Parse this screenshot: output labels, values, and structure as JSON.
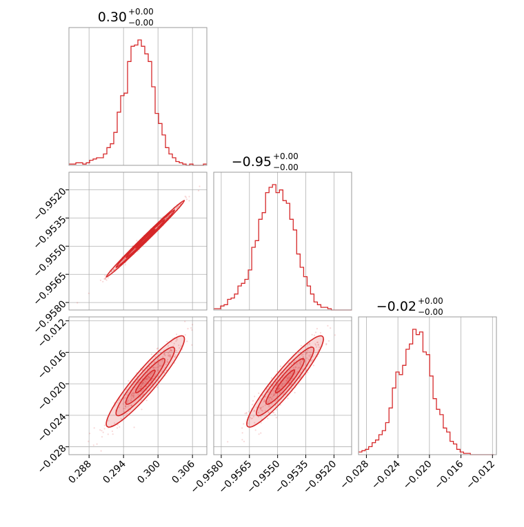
{
  "chart_data": {
    "type": "corner",
    "color": "#d62728",
    "panel_border_color": "#999999",
    "grid_color": "#b0b0b0",
    "grid": true,
    "parameters": [
      {
        "title_main": "0.30",
        "title_upper": "+0.00",
        "title_lower": "−0.00",
        "range": [
          0.2845,
          0.3085
        ],
        "ticks": [
          0.288,
          0.294,
          0.3,
          0.306
        ],
        "tick_labels": [
          "0.288",
          "0.294",
          "0.300",
          "0.306"
        ],
        "histogram": {
          "x_start": 0.2845,
          "bin_width": 0.0006,
          "counts": [
            1,
            1,
            2,
            2,
            1,
            2,
            4,
            5,
            6,
            6,
            9,
            14,
            17,
            26,
            42,
            55,
            57,
            82,
            94,
            95,
            99,
            94,
            88,
            82,
            62,
            41,
            33,
            24,
            14,
            9,
            6,
            3,
            2,
            1,
            0,
            1,
            0,
            0,
            0,
            1
          ]
        }
      },
      {
        "title_main": "−0.95",
        "title_upper": "+0.00",
        "title_lower": "−0.00",
        "range": [
          -0.9584,
          -0.95106
        ],
        "ticks": [
          -0.958,
          -0.9565,
          -0.955,
          -0.9535,
          -0.952
        ],
        "tick_labels": [
          "−0.9580",
          "−0.9565",
          "−0.9550",
          "−0.9535",
          "−0.9520"
        ],
        "histogram": {
          "x_start": -0.9584,
          "bin_width": 0.000184,
          "counts": [
            1,
            1,
            3,
            4,
            8,
            9,
            12,
            18,
            20,
            23,
            30,
            47,
            52,
            68,
            73,
            88,
            92,
            94,
            88,
            90,
            82,
            80,
            68,
            60,
            42,
            32,
            25,
            18,
            12,
            6,
            4,
            2,
            2,
            1,
            0,
            0,
            0,
            0,
            0,
            0
          ]
        }
      },
      {
        "title_main": "−0.02",
        "title_upper": "+0.00",
        "title_lower": "−0.00",
        "range": [
          -0.029,
          -0.0115
        ],
        "ticks": [
          -0.028,
          -0.024,
          -0.02,
          -0.016,
          -0.012
        ],
        "tick_labels": [
          "−0.028",
          "−0.024",
          "−0.020",
          "−0.016",
          "−0.012"
        ],
        "histogram": {
          "x_start": -0.029,
          "bin_width": 0.00043,
          "counts": [
            2,
            3,
            4,
            6,
            9,
            11,
            15,
            18,
            24,
            35,
            50,
            62,
            60,
            67,
            79,
            83,
            94,
            90,
            92,
            77,
            75,
            59,
            42,
            34,
            30,
            20,
            17,
            10,
            8,
            4,
            2,
            1,
            1,
            0,
            0,
            0,
            0,
            0,
            0,
            0
          ]
        }
      }
    ],
    "pairs": [
      {
        "x_param": 0,
        "y_param": 1,
        "mean": [
          0.2978,
          -0.9546
        ],
        "sd": [
          0.0034,
          0.00102
        ],
        "correlation": 0.995
      },
      {
        "x_param": 0,
        "y_param": 2,
        "mean": [
          0.2978,
          -0.0197
        ],
        "sd": [
          0.0034,
          0.0029
        ],
        "correlation": 0.93
      },
      {
        "x_param": 1,
        "y_param": 2,
        "mean": [
          -0.9546,
          -0.0197
        ],
        "sd": [
          0.00102,
          0.0029
        ],
        "correlation": 0.93
      }
    ],
    "contour_levels_sigma": [
      0.5,
      1.0,
      1.5,
      2.0
    ]
  }
}
